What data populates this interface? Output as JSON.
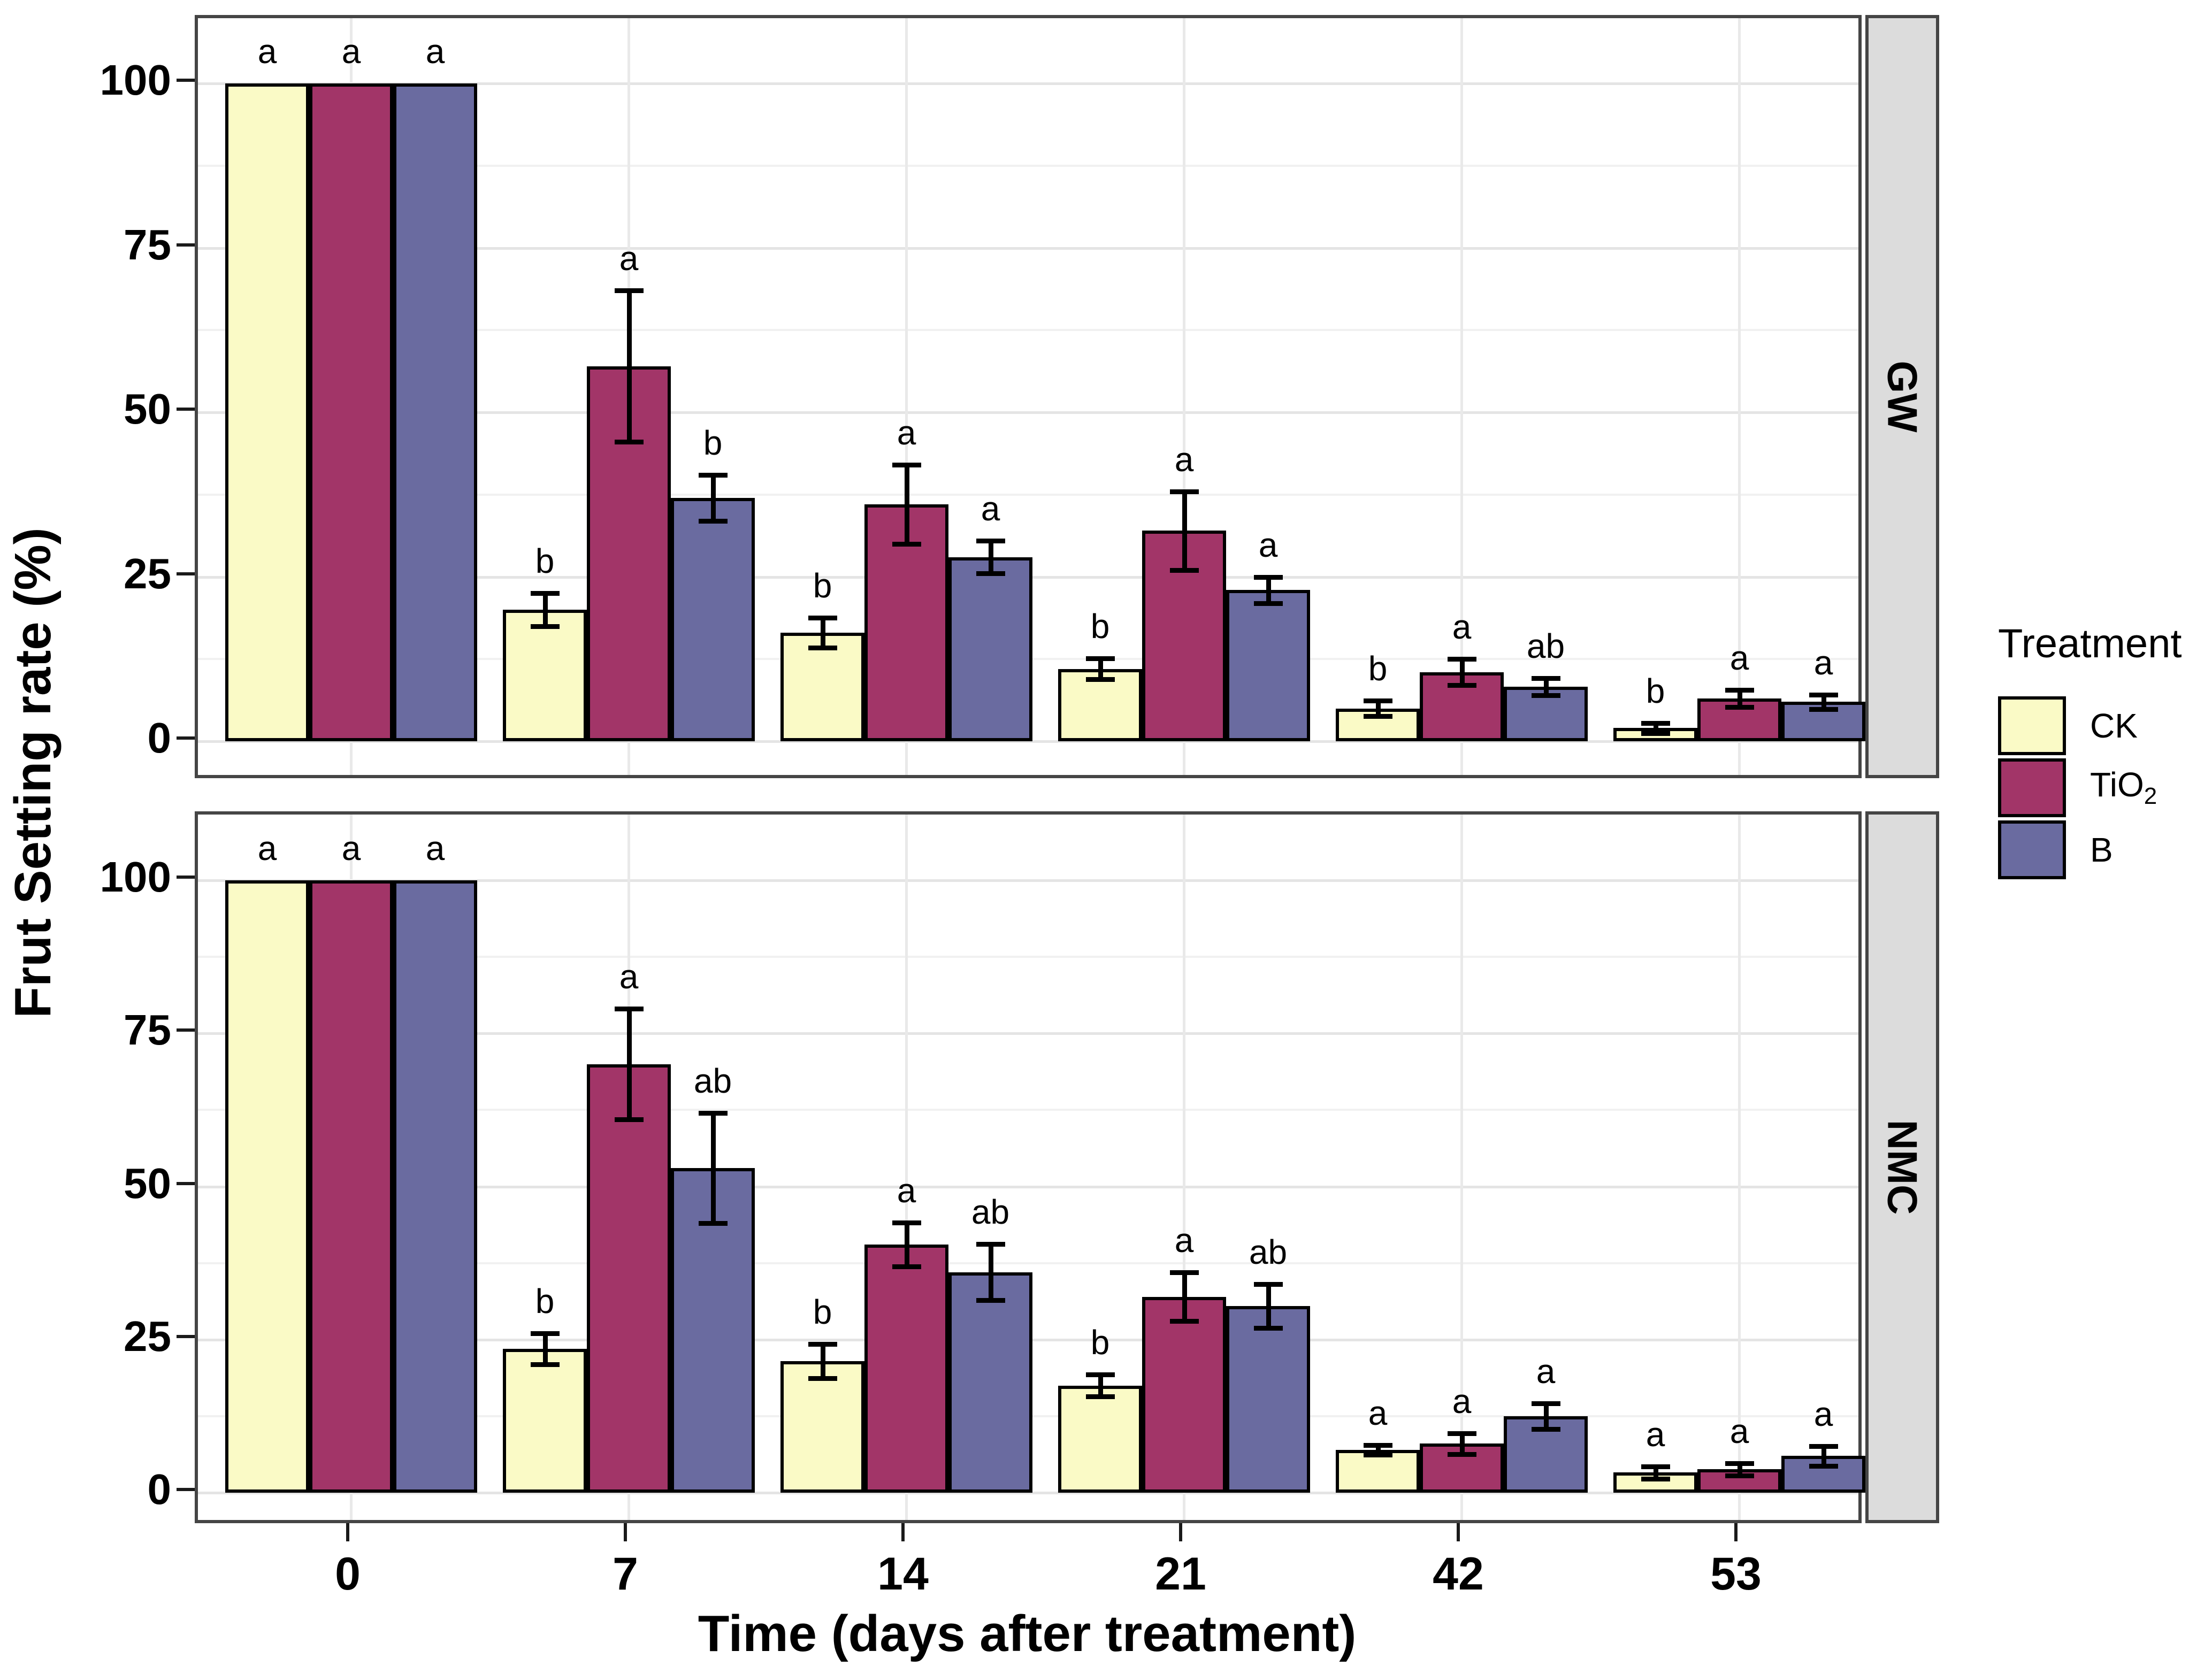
{
  "chart_data": {
    "type": "bar",
    "title": "",
    "xlabel": "Time (days after treatment)",
    "ylabel": "Frut Setting rate (%)",
    "legend_title": "Treatment",
    "categories": [
      "0",
      "7",
      "14",
      "21",
      "42",
      "53"
    ],
    "ylim": [
      0,
      100
    ],
    "yticks": [
      "0",
      "25",
      "50",
      "75",
      "100"
    ],
    "grid": "major and minor horizontal, vertical at group centers",
    "legend_position": "right",
    "series_meta": [
      {
        "name": "CK",
        "label_base": "CK",
        "label_sub": "",
        "color": "#fafac6"
      },
      {
        "name": "TiO2",
        "label_base": "TiO",
        "label_sub": "2",
        "color": "#a23568"
      },
      {
        "name": "B",
        "label_base": "B",
        "label_sub": "",
        "color": "#6a6ba0"
      }
    ],
    "facets": [
      {
        "label": "GW",
        "series": [
          {
            "name": "CK",
            "values": [
              100,
              20,
              16.5,
              11,
              5,
              2
            ],
            "errors": [
              0,
              2.5,
              2.3,
              1.6,
              1.2,
              0.8
            ],
            "letters": [
              "a",
              "b",
              "b",
              "b",
              "b",
              "b"
            ]
          },
          {
            "name": "TiO2",
            "values": [
              100,
              57,
              36,
              32,
              10.5,
              6.5
            ],
            "errors": [
              0,
              11.5,
              6,
              6,
              2,
              1.3
            ],
            "letters": [
              "a",
              "a",
              "a",
              "a",
              "a",
              "a"
            ]
          },
          {
            "name": "B",
            "values": [
              100,
              37,
              28,
              23,
              8.3,
              6
            ],
            "errors": [
              0,
              3.5,
              2.5,
              2,
              1.3,
              1.1
            ],
            "letters": [
              "a",
              "b",
              "a",
              "a",
              "ab",
              "a"
            ]
          }
        ]
      },
      {
        "label": "NMC",
        "series": [
          {
            "name": "CK",
            "values": [
              100,
              23.5,
              21.5,
              17.5,
              7,
              3.3
            ],
            "errors": [
              0,
              2.5,
              2.8,
              1.8,
              0.8,
              1
            ],
            "letters": [
              "a",
              "b",
              "b",
              "b",
              "a",
              "a"
            ]
          },
          {
            "name": "TiO2",
            "values": [
              100,
              70,
              40.5,
              32,
              8,
              3.8
            ],
            "errors": [
              0,
              9,
              3.6,
              4,
              1.7,
              1
            ],
            "letters": [
              "a",
              "a",
              "a",
              "a",
              "a",
              "a"
            ]
          },
          {
            "name": "B",
            "values": [
              100,
              53,
              36,
              30.5,
              12.5,
              6
            ],
            "errors": [
              0,
              9,
              4.6,
              3.6,
              2.1,
              1.6
            ],
            "letters": [
              "a",
              "ab",
              "ab",
              "ab",
              "a",
              "a"
            ]
          }
        ]
      }
    ]
  }
}
